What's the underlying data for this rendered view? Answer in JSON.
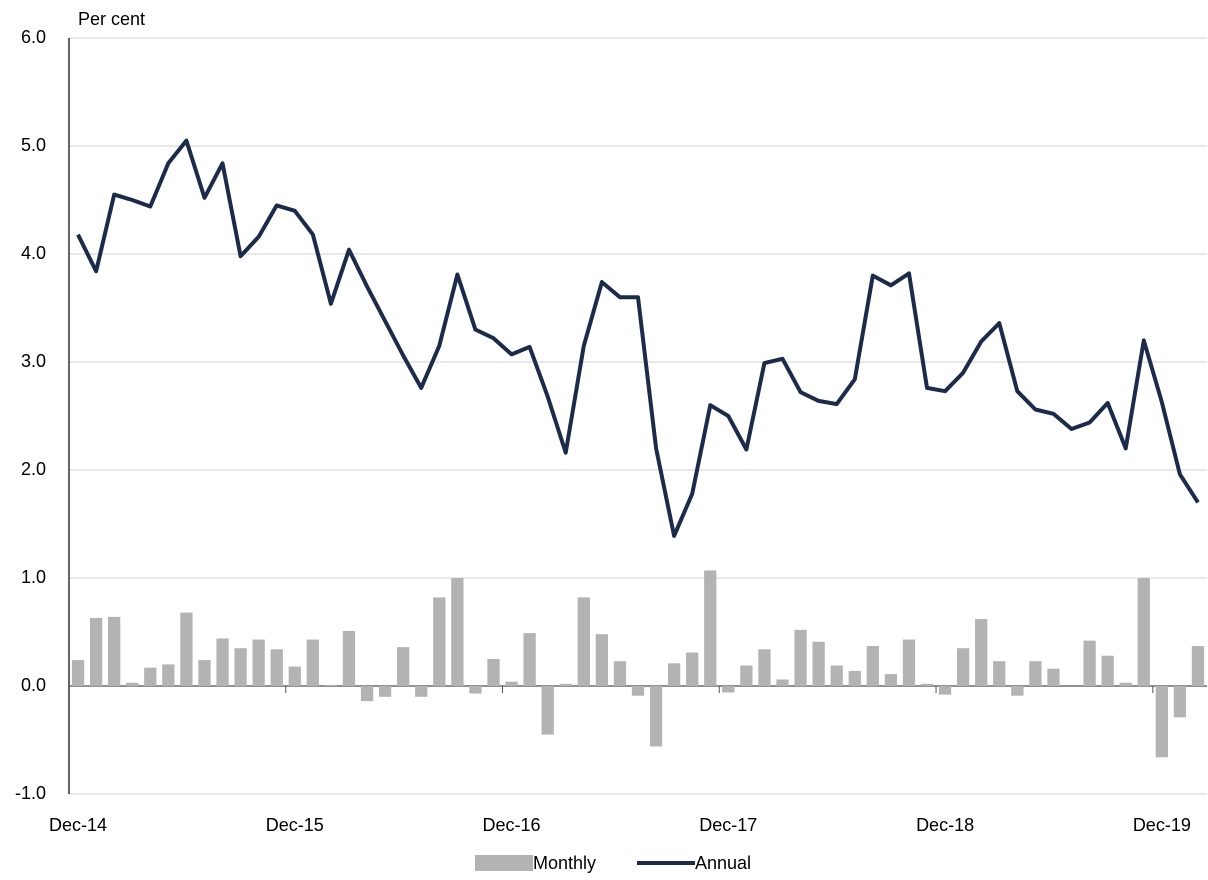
{
  "chart_data": {
    "type": "bar-line",
    "y_label": "Per cent",
    "categories": [
      "Dec-14",
      null,
      null,
      null,
      null,
      null,
      null,
      null,
      null,
      null,
      null,
      null,
      "Dec-15",
      null,
      null,
      null,
      null,
      null,
      null,
      null,
      null,
      null,
      null,
      null,
      "Dec-16",
      null,
      null,
      null,
      null,
      null,
      null,
      null,
      null,
      null,
      null,
      null,
      "Dec-17",
      null,
      null,
      null,
      null,
      null,
      null,
      null,
      null,
      null,
      null,
      null,
      "Dec-18",
      null,
      null,
      null,
      null,
      null,
      null,
      null,
      null,
      null,
      null,
      null,
      "Dec-19",
      null,
      null
    ],
    "series": [
      {
        "name": "Monthly",
        "type": "bar",
        "color": "#b3b3b3",
        "values": [
          0.24,
          0.63,
          0.64,
          0.03,
          0.17,
          0.2,
          0.68,
          0.24,
          0.44,
          0.35,
          0.43,
          0.34,
          0.18,
          0.43,
          0.01,
          0.51,
          -0.14,
          -0.1,
          0.36,
          -0.1,
          0.82,
          1.0,
          -0.07,
          0.25,
          0.04,
          0.49,
          -0.45,
          0.02,
          0.82,
          0.48,
          0.23,
          -0.09,
          -0.56,
          0.21,
          0.31,
          1.07,
          -0.06,
          0.19,
          0.34,
          0.06,
          0.52,
          0.41,
          0.19,
          0.14,
          0.37,
          0.11,
          0.43,
          0.02,
          -0.08,
          0.35,
          0.62,
          0.23,
          -0.09,
          0.23,
          0.16,
          0.0,
          0.42,
          0.28,
          0.03,
          1.0,
          -0.66,
          -0.29,
          0.37
        ]
      },
      {
        "name": "Annual",
        "type": "line",
        "color": "#1c2b4a",
        "values": [
          4.18,
          3.84,
          4.55,
          4.5,
          4.44,
          4.84,
          5.05,
          4.52,
          4.84,
          3.98,
          4.16,
          4.45,
          4.4,
          4.18,
          3.54,
          4.04,
          3.7,
          3.38,
          3.06,
          2.76,
          3.15,
          3.81,
          3.3,
          3.22,
          3.07,
          3.14,
          2.68,
          2.16,
          3.15,
          3.74,
          3.6,
          3.6,
          2.2,
          1.39,
          1.78,
          2.6,
          2.5,
          2.19,
          2.99,
          3.03,
          2.72,
          2.64,
          2.61,
          2.84,
          3.8,
          3.71,
          3.82,
          2.76,
          2.73,
          2.9,
          3.19,
          3.36,
          2.73,
          2.56,
          2.52,
          2.38,
          2.44,
          2.62,
          2.2,
          3.2,
          2.63,
          1.96,
          1.7
        ]
      }
    ],
    "ylim": [
      -1,
      6
    ],
    "yticks": [
      {
        "value": -1,
        "label": "-1.0"
      },
      {
        "value": 0,
        "label": "0.0"
      },
      {
        "value": 1,
        "label": "1.0"
      },
      {
        "value": 2,
        "label": "2.0"
      },
      {
        "value": 3,
        "label": "3.0"
      },
      {
        "value": 4,
        "label": "4.0"
      },
      {
        "value": 5,
        "label": "5.0"
      },
      {
        "value": 6,
        "label": "6.0"
      }
    ],
    "grid": true,
    "legend": "bottom"
  }
}
